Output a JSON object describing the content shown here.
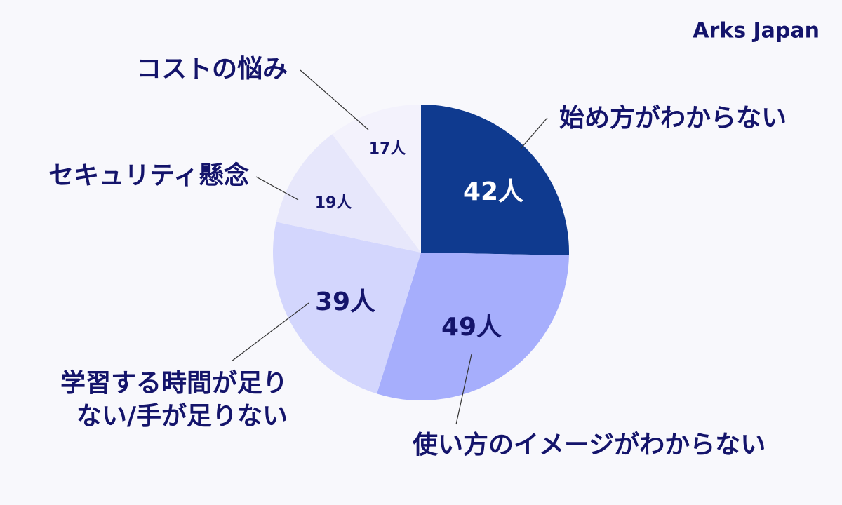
{
  "brand": "Arks Japan",
  "chart_data": {
    "type": "pie",
    "categories": [
      "始め方がわからない",
      "使い方のイメージがわからない",
      "学習する時間が足り\nない/手が足りない",
      "セキュリティ懸念",
      "コストの悩み"
    ],
    "values": [
      42,
      49,
      39,
      19,
      17
    ],
    "value_labels": [
      "42人",
      "49人",
      "39人",
      "19人",
      "17人"
    ],
    "colors": [
      "#0f3a8f",
      "#a6aefc",
      "#d3d6fd",
      "#e7e7fb",
      "#f3f2fc"
    ]
  }
}
